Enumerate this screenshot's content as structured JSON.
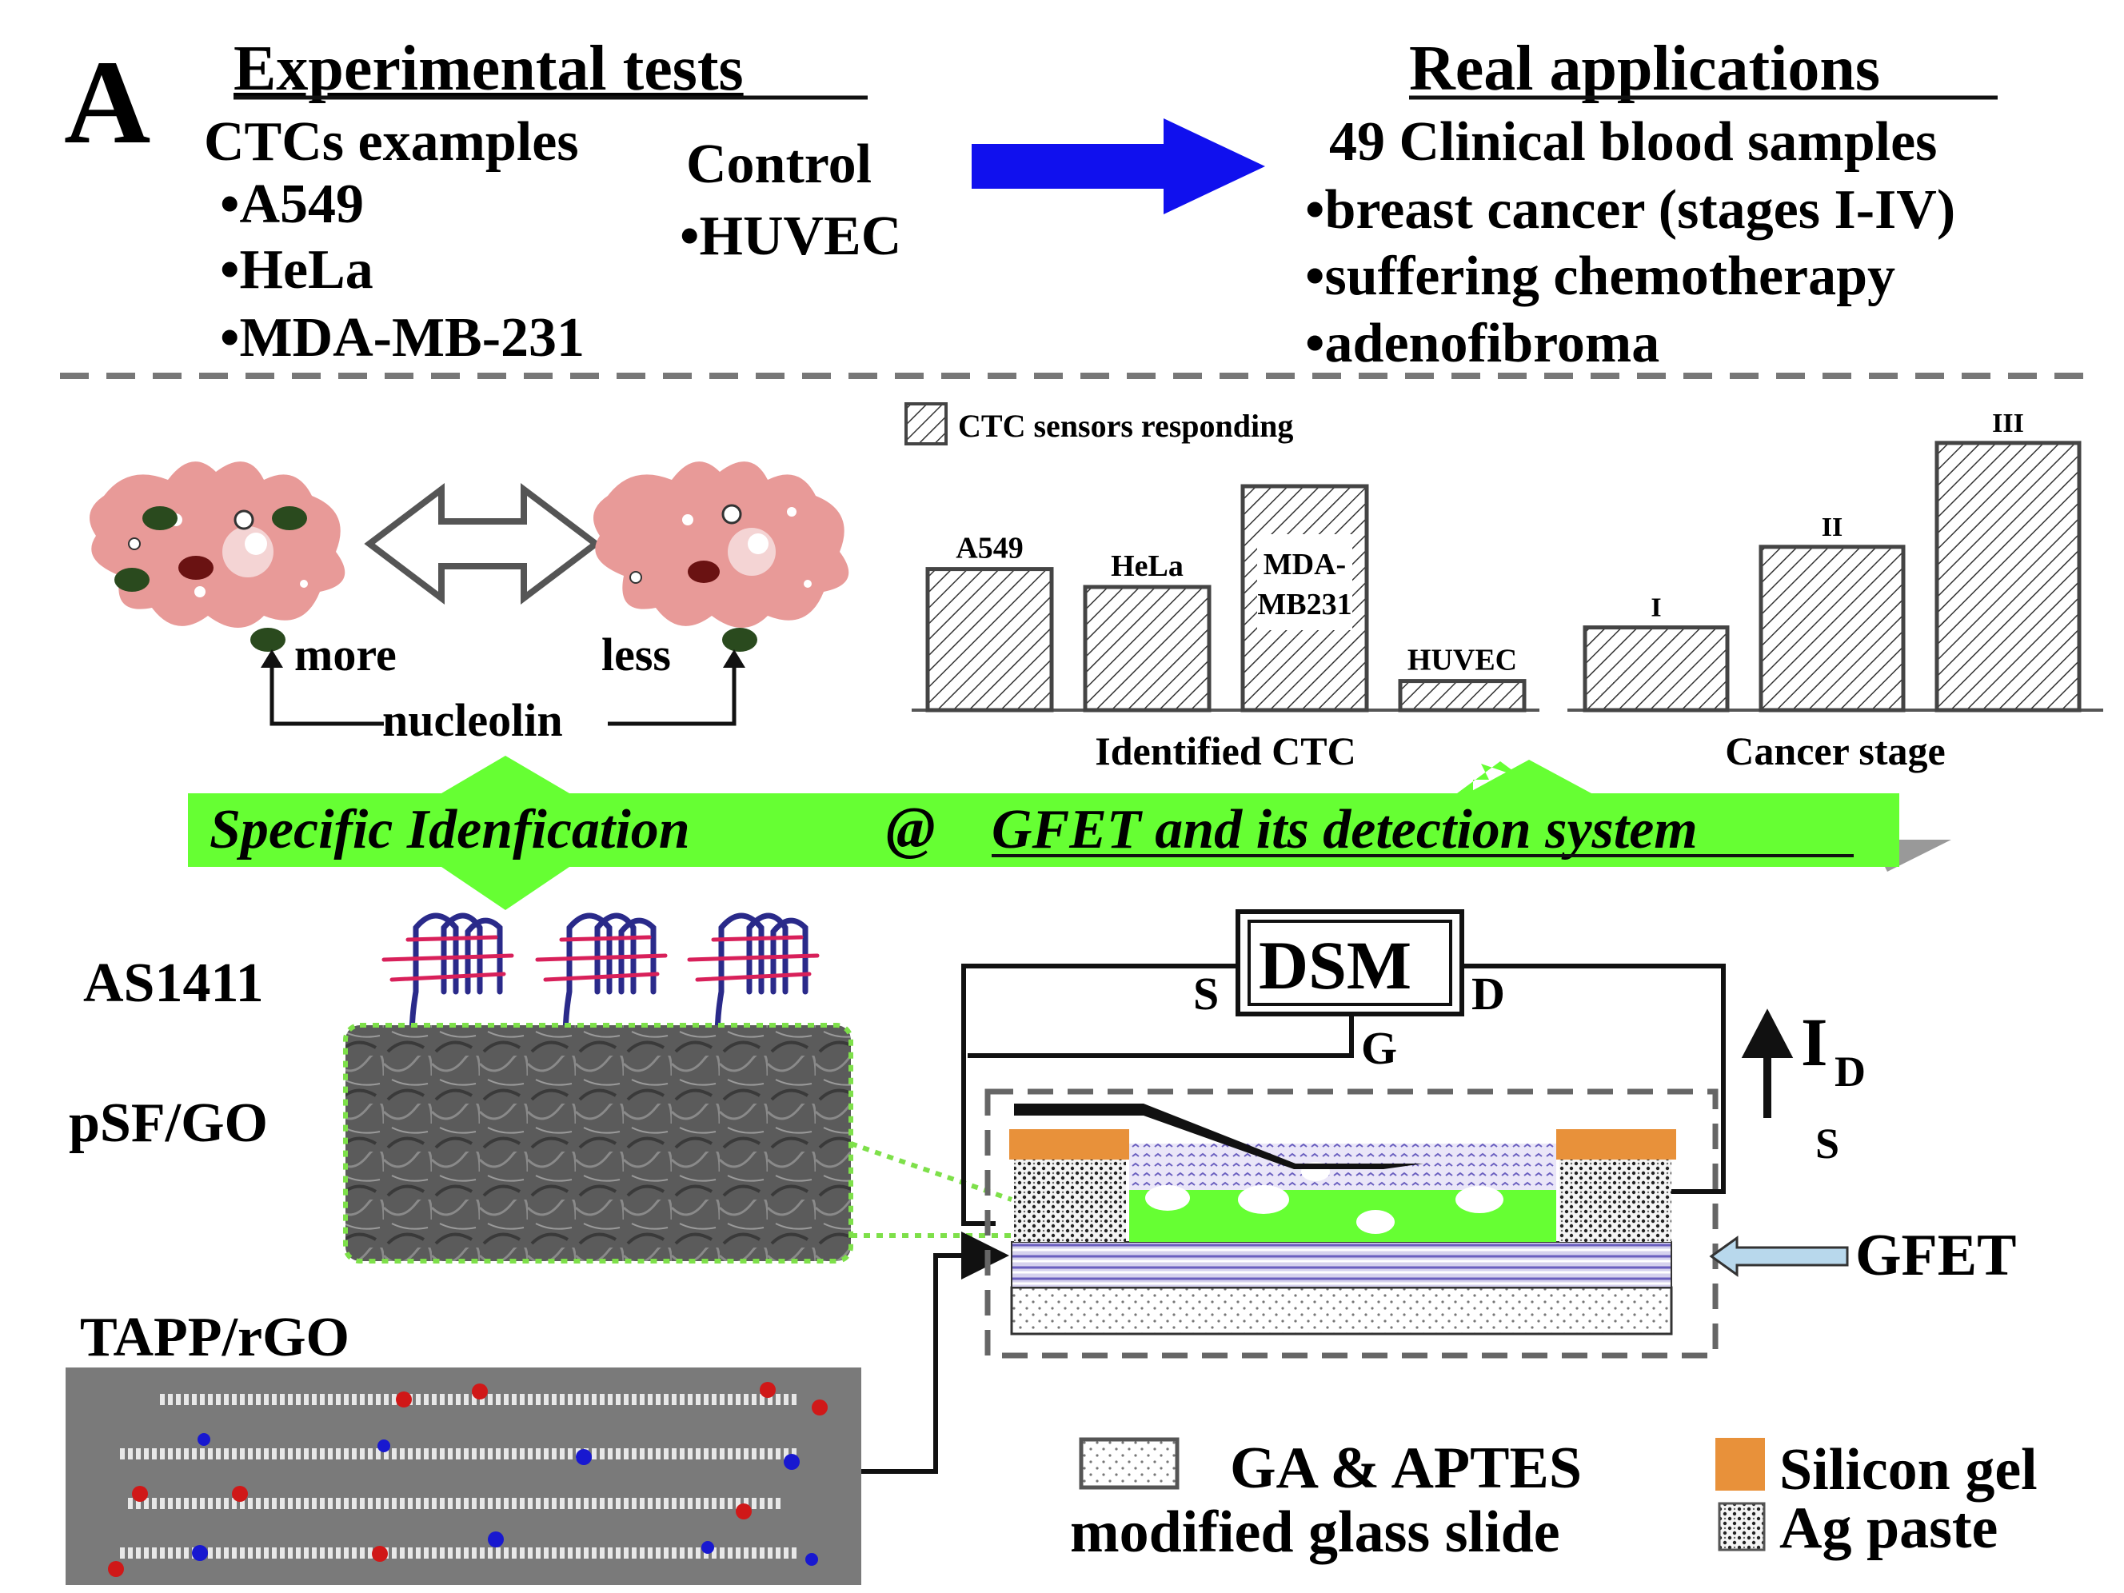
{
  "panel_label": "A",
  "experimental": {
    "title": "Experimental tests",
    "ctc_heading": "CTCs examples",
    "ctc_items": [
      "•A549",
      "•HeLa",
      "•MDA-MB-231"
    ],
    "control_heading": "Control",
    "control_items": [
      "•HUVEC"
    ]
  },
  "real_apps": {
    "title": "Real applications",
    "subtitle": "49 Clinical blood samples",
    "items": [
      "•breast cancer (stages I-IV)",
      "•suffering chemotherapy",
      "•adenofibroma"
    ]
  },
  "cells": {
    "more_label": "more",
    "less_label": "less",
    "nucleolin_label": "nucleolin"
  },
  "chart_data": [
    {
      "type": "bar",
      "title": "",
      "xlabel": "Identified CTC",
      "ylabel": "",
      "legend": "CTC sensors responding",
      "categories": [
        "A549",
        "HeLa",
        "MDA-MB231",
        "HUVEC"
      ],
      "category_labels": [
        "A549",
        "HeLa",
        "MDA-\nMB231",
        "HUVEC"
      ],
      "values": [
        0.63,
        0.55,
        1.0,
        0.13
      ],
      "ylim": [
        0,
        1.1
      ]
    },
    {
      "type": "bar",
      "title": "",
      "xlabel": "Cancer stage",
      "ylabel": "",
      "categories": [
        "I",
        "II",
        "III"
      ],
      "values": [
        0.39,
        0.77,
        1.26
      ],
      "ylim": [
        0,
        1.35
      ]
    }
  ],
  "banner": {
    "left": "Specific Idenfication",
    "at": "@",
    "right": "GFET and its detection system"
  },
  "left_labels": {
    "aptamer": "AS1411",
    "psf": "pSF/GO",
    "tapp": "TAPP/rGO"
  },
  "circuit": {
    "dsm": "DSM",
    "s_label": "S",
    "d_label": "D",
    "g_label": "G",
    "id_main": "I",
    "id_sub_d": "D",
    "id_sub_s": "S",
    "gfet": "GFET"
  },
  "legend": {
    "glass_line1": "GA & APTES",
    "glass_line2": "modified glass slide",
    "silicon": "Silicon gel",
    "ag": "Ag paste"
  },
  "colors": {
    "arrow_blue": "#1010ee",
    "banner_green": "#66ff33",
    "cell_pink": "#e89a98",
    "nucleolin_green": "#2a4a1e",
    "silicon_orange": "#e8913a",
    "aptamer_blue": "#2a2a8a",
    "aptamer_red": "#d8205a",
    "gfet_arrow": "#b8d8ec"
  }
}
